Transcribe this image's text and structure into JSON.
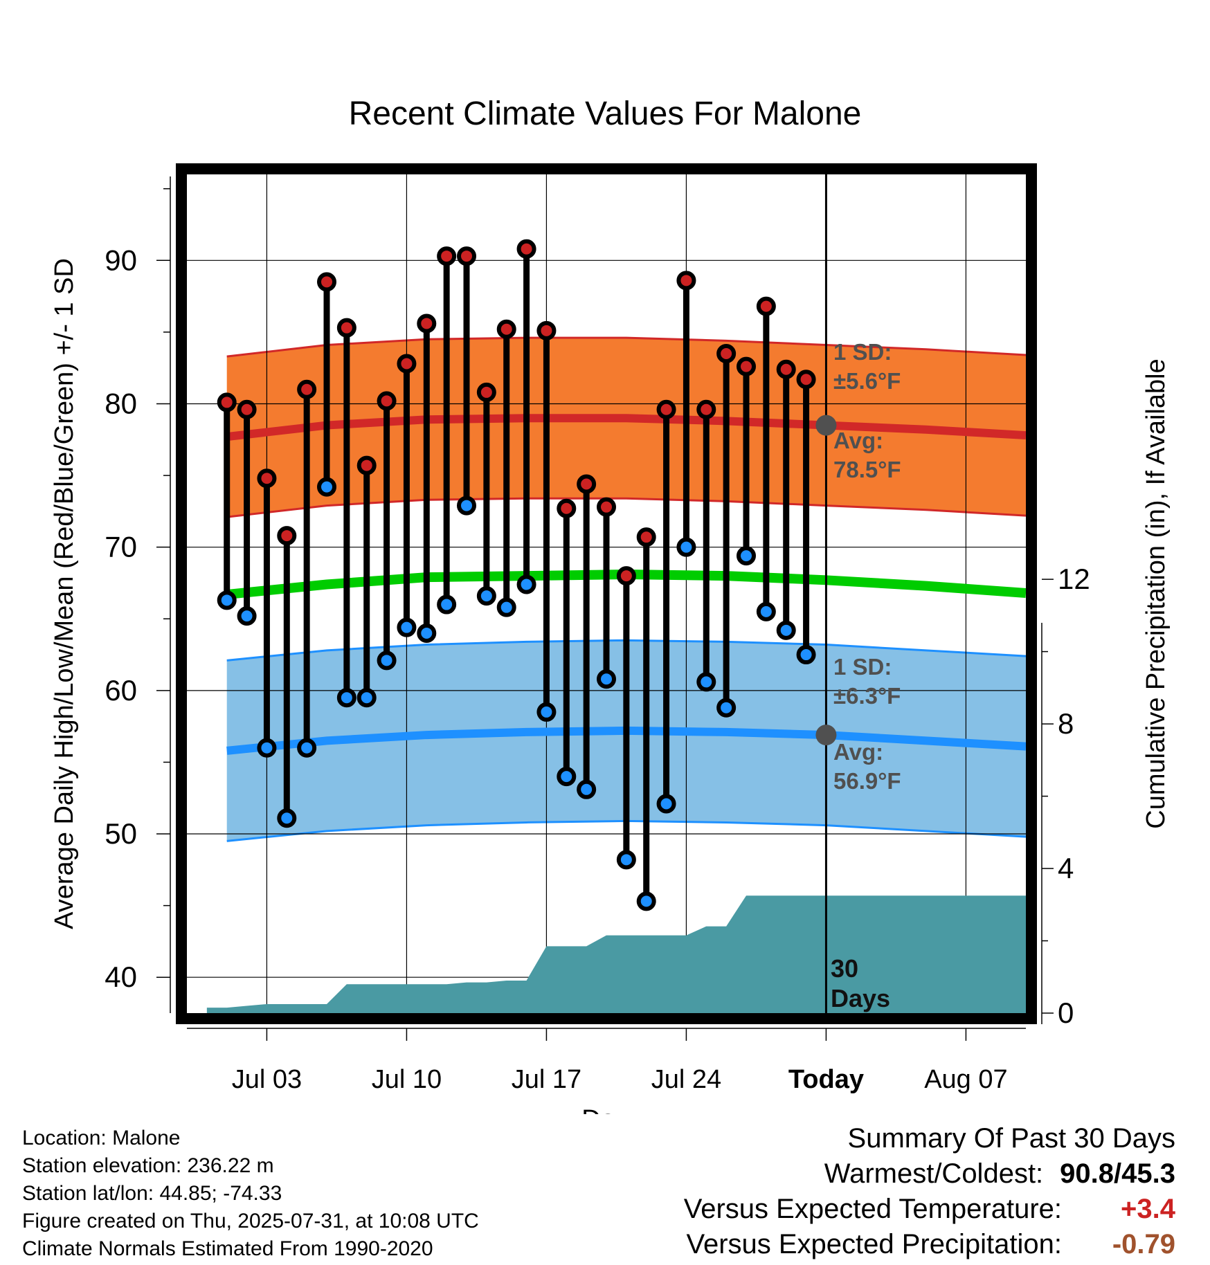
{
  "chart_data": {
    "type": "line",
    "title": "Recent Climate Values For Malone",
    "xlabel": "Day",
    "ylabel": "Average Daily High/Low/Mean (Red/Blue/Green) +/- 1 SD",
    "y2label": "Cumulative Precipitation (in), If Available",
    "ylim": [
      37.5,
      96
    ],
    "y2lim": [
      0,
      23.2
    ],
    "yticks": [
      40,
      50,
      60,
      70,
      80,
      90
    ],
    "y2ticks": [
      0,
      4,
      8,
      12
    ],
    "xlim": [
      "2025-06-29",
      "2025-08-10"
    ],
    "xticks": [
      {
        "date": "2025-07-03",
        "label": "Jul 03"
      },
      {
        "date": "2025-07-10",
        "label": "Jul 10"
      },
      {
        "date": "2025-07-17",
        "label": "Jul 17"
      },
      {
        "date": "2025-07-24",
        "label": "Jul 24"
      },
      {
        "date": "2025-07-31",
        "label": "Today"
      },
      {
        "date": "2025-08-07",
        "label": "Aug 07"
      }
    ],
    "grid": true,
    "today": "2025-07-31",
    "colors": {
      "high_band": "#f47b2f",
      "high_line": "#d12828",
      "low_band": "#86c0e6",
      "low_line": "#1e90ff",
      "mean_line": "#00cc00",
      "precip": "#4a9aa3",
      "high_marker": "#cc2222",
      "low_marker": "#1e90ff",
      "annotation": "#505050",
      "temp_anomaly": "#cc2222",
      "precip_anomaly": "#a0522d"
    },
    "normals": {
      "x": [
        "2025-07-01",
        "2025-07-06",
        "2025-07-11",
        "2025-07-16",
        "2025-07-21",
        "2025-07-26",
        "2025-07-31",
        "2025-08-05",
        "2025-08-10"
      ],
      "high_avg": [
        77.7,
        78.5,
        78.9,
        79.0,
        79.0,
        78.8,
        78.5,
        78.2,
        77.8
      ],
      "high_sd": 5.6,
      "low_avg": [
        55.8,
        56.5,
        56.9,
        57.1,
        57.2,
        57.1,
        56.9,
        56.5,
        56.1
      ],
      "low_sd": 6.3,
      "mean_avg": [
        66.7,
        67.4,
        67.9,
        68.0,
        68.1,
        68.0,
        67.7,
        67.3,
        66.8
      ]
    },
    "series": [
      {
        "name": "High",
        "x": [
          "2025-07-01",
          "2025-07-02",
          "2025-07-03",
          "2025-07-04",
          "2025-07-05",
          "2025-07-06",
          "2025-07-07",
          "2025-07-08",
          "2025-07-09",
          "2025-07-10",
          "2025-07-11",
          "2025-07-12",
          "2025-07-13",
          "2025-07-14",
          "2025-07-15",
          "2025-07-16",
          "2025-07-17",
          "2025-07-18",
          "2025-07-19",
          "2025-07-20",
          "2025-07-21",
          "2025-07-22",
          "2025-07-23",
          "2025-07-24",
          "2025-07-25",
          "2025-07-26",
          "2025-07-27",
          "2025-07-28",
          "2025-07-29",
          "2025-07-30"
        ],
        "values": [
          80.1,
          79.6,
          74.8,
          70.8,
          81.0,
          88.5,
          85.3,
          75.7,
          80.2,
          82.8,
          85.6,
          90.3,
          90.3,
          80.8,
          85.2,
          90.8,
          85.1,
          72.7,
          74.4,
          72.8,
          68.0,
          70.7,
          79.6,
          88.6,
          79.6,
          83.5,
          82.6,
          86.8,
          82.4,
          81.7
        ]
      },
      {
        "name": "Low",
        "x": [
          "2025-07-01",
          "2025-07-02",
          "2025-07-03",
          "2025-07-04",
          "2025-07-05",
          "2025-07-06",
          "2025-07-07",
          "2025-07-08",
          "2025-07-09",
          "2025-07-10",
          "2025-07-11",
          "2025-07-12",
          "2025-07-13",
          "2025-07-14",
          "2025-07-15",
          "2025-07-16",
          "2025-07-17",
          "2025-07-18",
          "2025-07-19",
          "2025-07-20",
          "2025-07-21",
          "2025-07-22",
          "2025-07-23",
          "2025-07-24",
          "2025-07-25",
          "2025-07-26",
          "2025-07-27",
          "2025-07-28",
          "2025-07-29",
          "2025-07-30"
        ],
        "values": [
          66.3,
          65.2,
          56.0,
          51.1,
          56.0,
          74.2,
          59.5,
          59.5,
          62.1,
          64.4,
          64.0,
          66.0,
          72.9,
          66.6,
          65.8,
          67.4,
          58.5,
          54.0,
          53.1,
          60.8,
          48.2,
          45.3,
          52.1,
          70.0,
          60.6,
          58.8,
          69.4,
          65.5,
          64.2,
          62.5
        ]
      },
      {
        "name": "Cumulative Precipitation",
        "x": [
          "2025-06-30",
          "2025-07-01",
          "2025-07-02",
          "2025-07-03",
          "2025-07-04",
          "2025-07-05",
          "2025-07-06",
          "2025-07-07",
          "2025-07-08",
          "2025-07-09",
          "2025-07-10",
          "2025-07-11",
          "2025-07-12",
          "2025-07-13",
          "2025-07-14",
          "2025-07-15",
          "2025-07-16",
          "2025-07-17",
          "2025-07-18",
          "2025-07-19",
          "2025-07-20",
          "2025-07-21",
          "2025-07-22",
          "2025-07-23",
          "2025-07-24",
          "2025-07-25",
          "2025-07-26",
          "2025-07-27",
          "2025-08-10"
        ],
        "values": [
          0.15,
          0.15,
          0.2,
          0.25,
          0.25,
          0.25,
          0.25,
          0.8,
          0.8,
          0.8,
          0.8,
          0.8,
          0.8,
          0.85,
          0.85,
          0.9,
          0.9,
          1.85,
          1.85,
          1.85,
          2.15,
          2.15,
          2.15,
          2.15,
          2.15,
          2.4,
          2.4,
          3.25,
          3.25
        ]
      }
    ],
    "annotations": {
      "high_sd_label": "1 SD:",
      "high_sd_value": "±5.6°F",
      "high_avg_label": "Avg:",
      "high_avg_value": "78.5°F",
      "low_sd_label": "1 SD:",
      "low_sd_value": "±6.3°F",
      "low_avg_label": "Avg:",
      "low_avg_value": "56.9°F",
      "days_line1": "30",
      "days_line2": "Days"
    }
  },
  "footer": {
    "location": "Location: Malone",
    "elevation": "Station elevation: 236.22 m",
    "latlon": "Station lat/lon: 44.85; -74.33",
    "created": "Figure created on Thu, 2025-07-31, at 10:08 UTC",
    "normals": "Climate Normals Estimated From 1990-2020"
  },
  "summary": {
    "title": "Summary Of Past 30 Days",
    "warmest_label": "Warmest/Coldest:",
    "warmest_value": "90.8/45.3",
    "temp_label": "Versus Expected Temperature:",
    "temp_value": "+3.4",
    "precip_label": "Versus Expected Precipitation:",
    "precip_value": "-0.79"
  }
}
